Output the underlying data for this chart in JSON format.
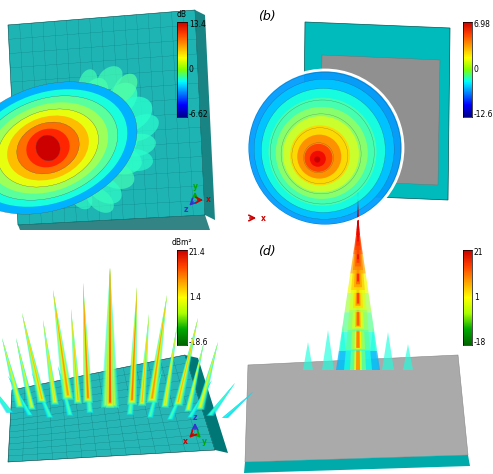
{
  "panel_b_label": "(b)",
  "panel_d_label": "(d)",
  "colorbar1_label": "dB",
  "colorbar1_max": "13.4",
  "colorbar1_mid": "0",
  "colorbar1_min": "-6.62",
  "colorbar2_label": "dBm²",
  "colorbar2_max": "21.4",
  "colorbar2_mid1": "1.4",
  "colorbar2_min": "-18.6",
  "colorbar_right_max": "6.98",
  "colorbar_right_mid": "0",
  "colorbar_right_min": "-12.6",
  "colorbar_right2_max": "21",
  "colorbar_right2_mid": "1",
  "colorbar_right2_min": "-18",
  "bg_color": "#ffffff",
  "teal_color": "#00AAAA",
  "gray_color": "#999999"
}
